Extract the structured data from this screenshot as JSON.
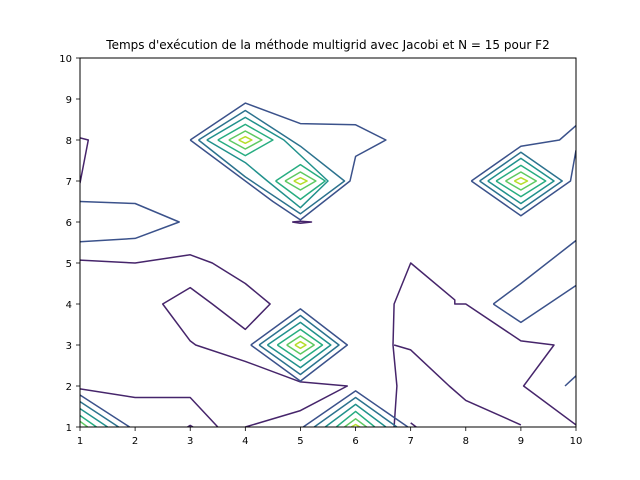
{
  "chart_data": {
    "type": "contour",
    "title": "Temps d'exécution de la méthode multigrid avec Jacobi et N = 15 pour F2",
    "xlabel": "",
    "ylabel": "",
    "xlim": [
      1,
      10
    ],
    "ylim": [
      1,
      10
    ],
    "xticks": [
      "1",
      "2",
      "3",
      "4",
      "5",
      "6",
      "7",
      "8",
      "9",
      "10"
    ],
    "yticks": [
      "1",
      "2",
      "3",
      "4",
      "5",
      "6",
      "7",
      "8",
      "9",
      "10"
    ],
    "grid": false,
    "legend": "none",
    "levels": [
      {
        "color": "#46256b",
        "lines": [
          [
            [
              1,
              5.07
            ],
            [
              2,
              5.0
            ],
            [
              3,
              5.2
            ],
            [
              3.4,
              5.0
            ],
            [
              4,
              4.5
            ],
            [
              4.45,
              4.0
            ],
            [
              4,
              3.38
            ],
            [
              3.4,
              4.0
            ],
            [
              3,
              4.4
            ],
            [
              2.5,
              4.0
            ],
            [
              3,
              3.1
            ],
            [
              3.1,
              3.0
            ],
            [
              4,
              2.6
            ],
            [
              5,
              2.1
            ],
            [
              5.85,
              2.0
            ],
            [
              5,
              1.4
            ],
            [
              4,
              1.0
            ]
          ],
          [
            [
              1,
              1.93
            ],
            [
              2,
              1.72
            ],
            [
              3,
              1.72
            ],
            [
              3.5,
              1.0
            ]
          ],
          [
            [
              2.95,
              1.0
            ],
            [
              3.0,
              1.04
            ],
            [
              3.05,
              1.0
            ]
          ],
          [
            [
              6.7,
              1.0
            ],
            [
              6.75,
              2.0
            ],
            [
              6.68,
              3.0
            ],
            [
              6.7,
              4.0
            ],
            [
              7,
              5.0
            ],
            [
              7.8,
              4.1
            ],
            [
              7.8,
              4.0
            ],
            [
              8,
              4.0
            ],
            [
              9,
              3.1
            ],
            [
              9.6,
              3.0
            ],
            [
              9.05,
              2.0
            ],
            [
              10,
              1.05
            ]
          ],
          [
            [
              6.7,
              3.0
            ],
            [
              7,
              2.88
            ],
            [
              7.7,
              2.0
            ],
            [
              8,
              1.65
            ],
            [
              9,
              1.05
            ]
          ],
          [
            [
              7,
              1.1
            ],
            [
              7.1,
              1.0
            ]
          ],
          [
            [
              1,
              6.95
            ],
            [
              1.15,
              8.0
            ],
            [
              1,
              8.05
            ]
          ],
          [
            [
              4.85,
              6.0
            ],
            [
              5,
              5.97
            ],
            [
              5.2,
              6.0
            ],
            [
              5,
              6.02
            ],
            [
              4.85,
              6.0
            ]
          ]
        ]
      },
      {
        "color": "#3b528b",
        "lines": [
          [
            [
              1,
              6.5
            ],
            [
              2,
              6.45
            ],
            [
              2.8,
              6.0
            ],
            [
              2,
              5.6
            ],
            [
              1,
              5.52
            ]
          ],
          [
            [
              3,
              8.0
            ],
            [
              4,
              8.9
            ],
            [
              5,
              8.4
            ],
            [
              6,
              8.37
            ],
            [
              6.55,
              8.0
            ],
            [
              6,
              7.6
            ],
            [
              5.9,
              7.0
            ],
            [
              5,
              6.05
            ],
            [
              4.5,
              6.5
            ],
            [
              3,
              8.0
            ]
          ],
          [
            [
              8.5,
              4.0
            ],
            [
              9,
              4.5
            ],
            [
              10,
              5.55
            ]
          ],
          [
            [
              8.5,
              4.0
            ],
            [
              9,
              3.55
            ],
            [
              9.5,
              4.0
            ],
            [
              10,
              4.45
            ]
          ],
          [
            [
              9.8,
              2.0
            ],
            [
              10,
              2.25
            ]
          ],
          [
            [
              8.1,
              7.0
            ],
            [
              9,
              7.85
            ],
            [
              9.7,
              8.0
            ],
            [
              10,
              8.35
            ]
          ],
          [
            [
              8.1,
              7.0
            ],
            [
              9,
              6.15
            ],
            [
              9.9,
              7.0
            ],
            [
              10,
              7.75
            ]
          ],
          [
            [
              4.1,
              3.0
            ],
            [
              5,
              3.88
            ],
            [
              5.85,
              3.0
            ],
            [
              5,
              2.12
            ],
            [
              4.1,
              3.0
            ]
          ],
          [
            [
              5.05,
              1.0
            ],
            [
              6,
              1.88
            ],
            [
              6.95,
              1.0
            ]
          ],
          [
            [
              1,
              1.78
            ],
            [
              1.9,
              1.0
            ]
          ]
        ]
      },
      {
        "color": "#2c728e",
        "lines": [
          [
            [
              3.15,
              8.0
            ],
            [
              4,
              8.72
            ],
            [
              5,
              7.85
            ],
            [
              5.8,
              7.0
            ],
            [
              5,
              6.2
            ],
            [
              4,
              7.1
            ],
            [
              3.15,
              8.0
            ]
          ],
          [
            [
              8.25,
              7.0
            ],
            [
              9,
              7.7
            ],
            [
              9.75,
              7.0
            ],
            [
              9,
              6.3
            ],
            [
              8.25,
              7.0
            ]
          ],
          [
            [
              4.25,
              3.0
            ],
            [
              5,
              3.72
            ],
            [
              5.7,
              3.0
            ],
            [
              5,
              2.28
            ],
            [
              4.25,
              3.0
            ]
          ],
          [
            [
              5.25,
              1.0
            ],
            [
              6,
              1.72
            ],
            [
              6.75,
              1.0
            ]
          ],
          [
            [
              1,
              1.62
            ],
            [
              1.7,
              1.0
            ]
          ]
        ]
      },
      {
        "color": "#21918c",
        "lines": [
          [
            [
              3.3,
              8.0
            ],
            [
              4,
              8.55
            ],
            [
              4.7,
              8.0
            ],
            [
              5.5,
              7.0
            ],
            [
              5,
              6.35
            ],
            [
              4.4,
              7.0
            ],
            [
              4,
              7.45
            ],
            [
              3.3,
              8.0
            ]
          ],
          [
            [
              8.4,
              7.0
            ],
            [
              9,
              7.55
            ],
            [
              9.6,
              7.0
            ],
            [
              9,
              6.45
            ],
            [
              8.4,
              7.0
            ]
          ],
          [
            [
              4.4,
              3.0
            ],
            [
              5,
              3.55
            ],
            [
              5.55,
              3.0
            ],
            [
              5,
              2.45
            ],
            [
              4.4,
              3.0
            ]
          ],
          [
            [
              5.45,
              1.0
            ],
            [
              6,
              1.55
            ],
            [
              6.55,
              1.0
            ]
          ],
          [
            [
              1,
              1.45
            ],
            [
              1.5,
              1.0
            ]
          ]
        ]
      },
      {
        "color": "#27ad81",
        "lines": [
          [
            [
              3.5,
              8.0
            ],
            [
              4,
              8.38
            ],
            [
              4.5,
              8.0
            ],
            [
              4,
              7.62
            ],
            [
              3.5,
              8.0
            ]
          ],
          [
            [
              4.55,
              7.0
            ],
            [
              5,
              7.4
            ],
            [
              5.45,
              7.0
            ],
            [
              5,
              6.55
            ],
            [
              4.55,
              7.0
            ]
          ],
          [
            [
              8.55,
              7.0
            ],
            [
              9,
              7.38
            ],
            [
              9.45,
              7.0
            ],
            [
              9,
              6.62
            ],
            [
              8.55,
              7.0
            ]
          ],
          [
            [
              4.58,
              3.0
            ],
            [
              5,
              3.38
            ],
            [
              5.4,
              3.0
            ],
            [
              5,
              2.62
            ],
            [
              4.58,
              3.0
            ]
          ],
          [
            [
              5.65,
              1.0
            ],
            [
              6,
              1.38
            ],
            [
              6.35,
              1.0
            ]
          ],
          [
            [
              1,
              1.28
            ],
            [
              1.3,
              1.0
            ]
          ]
        ]
      },
      {
        "color": "#5ec962",
        "lines": [
          [
            [
              3.7,
              8.0
            ],
            [
              4,
              8.22
            ],
            [
              4.3,
              8.0
            ],
            [
              4,
              7.78
            ],
            [
              3.7,
              8.0
            ]
          ],
          [
            [
              4.72,
              7.0
            ],
            [
              5,
              7.22
            ],
            [
              5.28,
              7.0
            ],
            [
              5,
              6.78
            ],
            [
              4.72,
              7.0
            ]
          ],
          [
            [
              8.72,
              7.0
            ],
            [
              9,
              7.22
            ],
            [
              9.28,
              7.0
            ],
            [
              9,
              6.78
            ],
            [
              8.72,
              7.0
            ]
          ],
          [
            [
              4.75,
              3.0
            ],
            [
              5,
              3.22
            ],
            [
              5.25,
              3.0
            ],
            [
              5,
              2.78
            ],
            [
              4.75,
              3.0
            ]
          ],
          [
            [
              5.8,
              1.0
            ],
            [
              6,
              1.2
            ],
            [
              6.2,
              1.0
            ]
          ],
          [
            [
              1,
              1.14
            ],
            [
              1.14,
              1.0
            ]
          ]
        ]
      },
      {
        "color": "#b5de2b",
        "lines": [
          [
            [
              3.88,
              8.0
            ],
            [
              4,
              8.08
            ],
            [
              4.12,
              8.0
            ],
            [
              4,
              7.92
            ],
            [
              3.88,
              8.0
            ]
          ],
          [
            [
              4.88,
              7.0
            ],
            [
              5,
              7.08
            ],
            [
              5.12,
              7.0
            ],
            [
              5,
              6.92
            ],
            [
              4.88,
              7.0
            ]
          ],
          [
            [
              8.88,
              7.0
            ],
            [
              9,
              7.08
            ],
            [
              9.12,
              7.0
            ],
            [
              9,
              6.92
            ],
            [
              8.88,
              7.0
            ]
          ],
          [
            [
              4.9,
              3.0
            ],
            [
              5,
              3.08
            ],
            [
              5.1,
              3.0
            ],
            [
              5,
              2.92
            ],
            [
              4.9,
              3.0
            ]
          ],
          [
            [
              5.92,
              1.0
            ],
            [
              6,
              1.06
            ],
            [
              6.08,
              1.0
            ]
          ]
        ]
      }
    ]
  }
}
